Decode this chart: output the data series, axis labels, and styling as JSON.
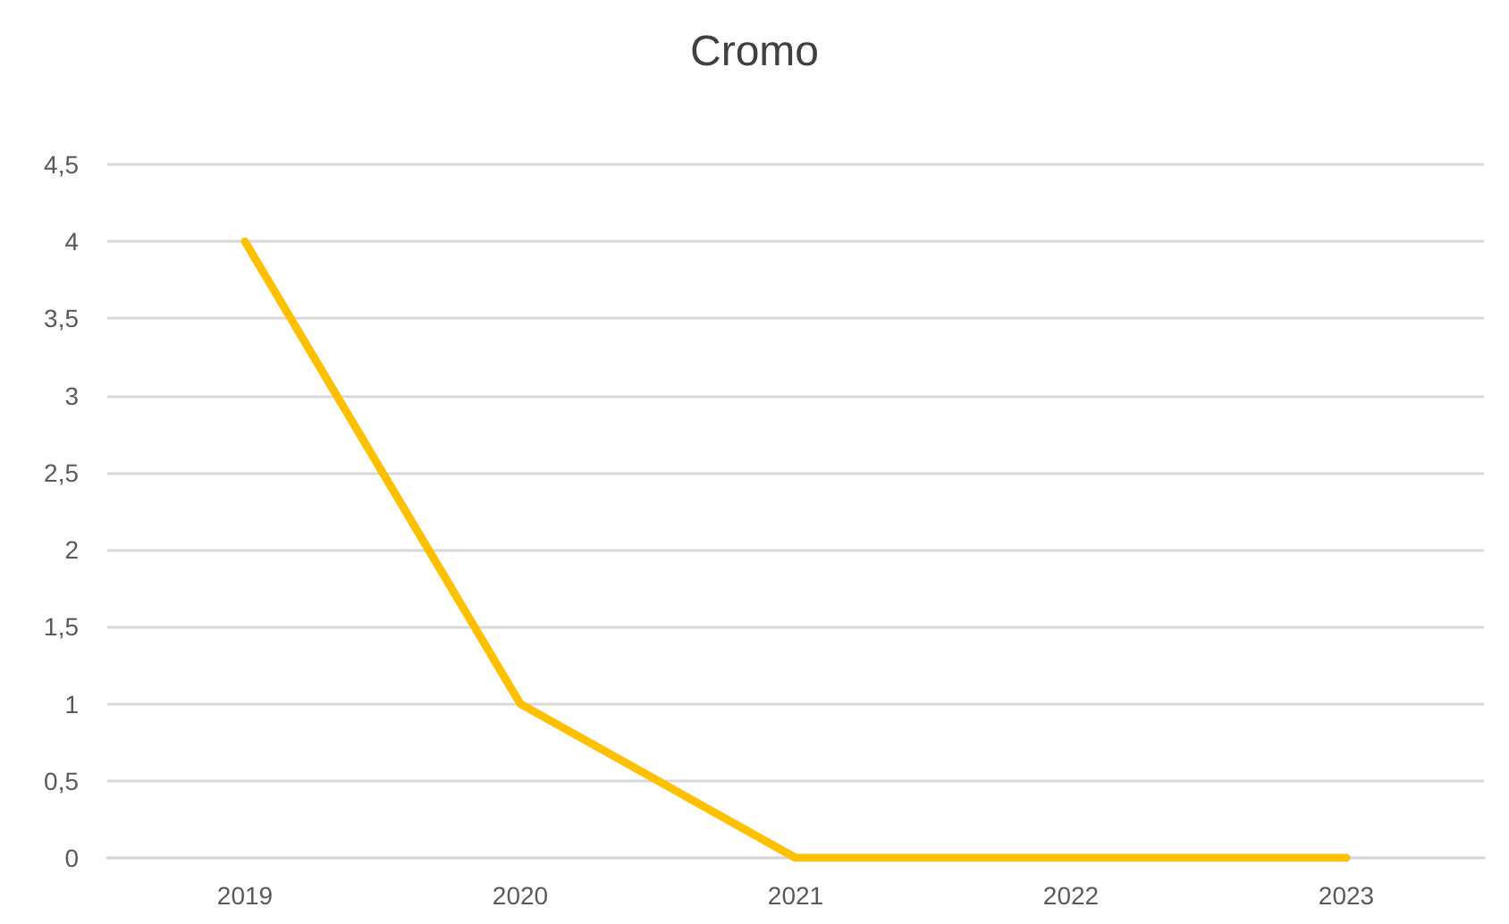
{
  "chart_data": {
    "type": "line",
    "title": "Cromo",
    "categories": [
      "2019",
      "2020",
      "2021",
      "2022",
      "2023"
    ],
    "series": [
      {
        "color": "#ffc000",
        "values": [
          4,
          1,
          0,
          0,
          0
        ]
      }
    ],
    "ylim": [
      0,
      4.5
    ],
    "yticks": [
      0,
      {
        "value": 0.5,
        "label": "0,5"
      },
      1,
      {
        "value": 1.5,
        "label": "1,5"
      },
      2,
      {
        "value": 2.5,
        "label": "2,5"
      },
      3,
      {
        "value": 3.5,
        "label": "3,5"
      },
      4,
      {
        "value": 4.5,
        "label": "4,5"
      }
    ],
    "grid": "y",
    "marker": "none",
    "line_style": "solid"
  }
}
